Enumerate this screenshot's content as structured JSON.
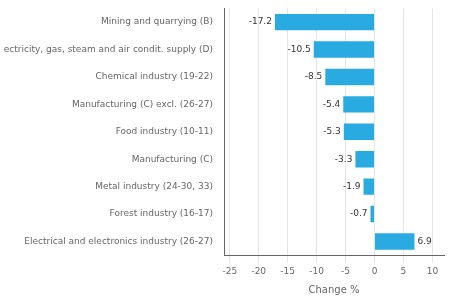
{
  "chart_data": {
    "type": "bar",
    "orientation": "horizontal",
    "categories": [
      "Mining and quarrying (B)",
      "Electricity, gas, steam and air condit. supply (D)",
      "Chemical industry (19-22)",
      "Manufacturing (C) excl. (26-27)",
      "Food industry (10-11)",
      "Manufacturing (C)",
      "Metal industry (24-30, 33)",
      "Forest industry (16-17)",
      "Electrical and electronics industry (26-27)"
    ],
    "values": [
      -17.2,
      -10.5,
      -8.5,
      -5.4,
      -5.3,
      -3.3,
      -1.9,
      -0.7,
      6.9
    ],
    "color": "#29abe2",
    "xlabel": "Change %",
    "xlim": [
      -26,
      12
    ],
    "xticks": [
      -25,
      -20,
      -15,
      -10,
      -5,
      0,
      5,
      10
    ],
    "grid": true,
    "data_labels": true
  }
}
